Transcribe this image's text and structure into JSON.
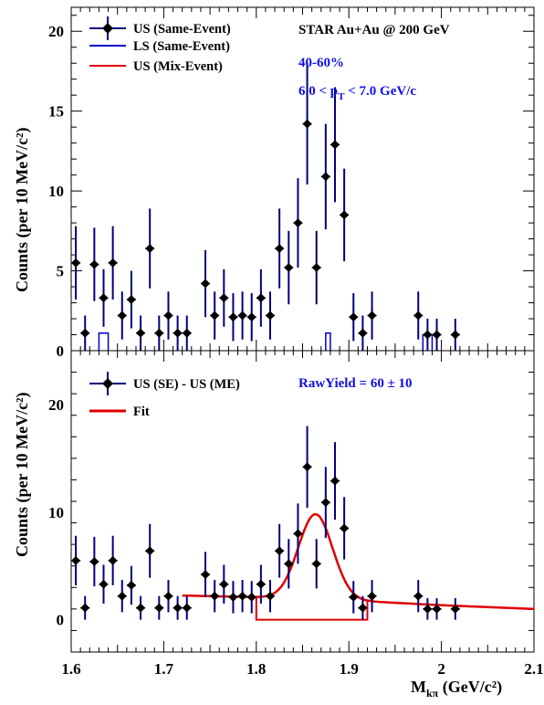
{
  "chart_data": [
    {
      "type": "scatter",
      "panel": "top",
      "ylabel": "Counts (per 10 MeV/c²)",
      "xlim": [
        1.6,
        2.1
      ],
      "ylim": [
        0,
        21.5
      ],
      "yticks": [
        0,
        5,
        10,
        15,
        20
      ],
      "annotations": {
        "system": "STAR Au+Au @ 200 GeV",
        "centrality": "40-60%",
        "pt_range": "6.0 < pT < 7.0 GeV/c"
      },
      "legend": [
        "US (Same-Event)",
        "LS (Same-Event)",
        "US (Mix-Event)"
      ],
      "series": [
        {
          "name": "US (Same-Event)",
          "color": "#000000",
          "errcolor": "#00007f",
          "x": [
            1.605,
            1.615,
            1.625,
            1.635,
            1.645,
            1.655,
            1.665,
            1.675,
            1.685,
            1.695,
            1.705,
            1.715,
            1.725,
            1.745,
            1.755,
            1.765,
            1.775,
            1.785,
            1.795,
            1.805,
            1.815,
            1.825,
            1.835,
            1.845,
            1.855,
            1.865,
            1.875,
            1.885,
            1.895,
            1.905,
            1.915,
            1.925,
            1.975,
            1.985,
            1.995,
            2.015
          ],
          "y": [
            5.5,
            1.1,
            5.4,
            3.3,
            5.5,
            2.2,
            3.2,
            1.1,
            6.4,
            1.1,
            2.2,
            1.1,
            1.1,
            4.2,
            2.2,
            3.3,
            2.1,
            2.2,
            2.1,
            3.3,
            2.2,
            6.4,
            5.2,
            8.0,
            14.2,
            5.2,
            10.9,
            12.9,
            8.5,
            2.1,
            1.1,
            2.2,
            2.2,
            1.0,
            1.0,
            1.0
          ],
          "yerr": [
            2.3,
            1.1,
            2.3,
            1.8,
            2.3,
            1.5,
            1.8,
            1.1,
            2.5,
            1.1,
            1.5,
            1.1,
            1.1,
            2.1,
            1.5,
            1.8,
            1.5,
            1.5,
            1.5,
            1.8,
            1.5,
            2.5,
            2.3,
            2.8,
            3.8,
            2.3,
            3.3,
            3.6,
            2.9,
            1.5,
            1.1,
            1.5,
            1.5,
            1.0,
            1.0,
            1.0
          ]
        },
        {
          "name": "LS (Same-Event)",
          "color": "#0000cc",
          "hist": [
            [
              1.63,
              1.64,
              1.1
            ],
            [
              1.875,
              1.88,
              1.1
            ],
            [
              1.98,
              1.99,
              1.0
            ]
          ]
        },
        {
          "name": "US (Mix-Event)",
          "color": "#e00000",
          "values": []
        }
      ]
    },
    {
      "type": "scatter",
      "panel": "bottom",
      "ylabel": "Counts (per 10 MeV/c²)",
      "xlabel": "Mkπ (GeV/c²)",
      "xlim": [
        1.6,
        2.1
      ],
      "ylim": [
        -3,
        25
      ],
      "xticks": [
        1.6,
        1.7,
        1.8,
        1.9,
        2.0,
        2.1
      ],
      "yticks": [
        0,
        10,
        20
      ],
      "annotations": {
        "raw_yield": "RawYield = 60  ± 10"
      },
      "legend": [
        "US (SE) - US (ME)",
        "Fit"
      ],
      "series": [
        {
          "name": "US (SE) - US (ME)",
          "color": "#000000",
          "errcolor": "#00007f",
          "x": [
            1.605,
            1.615,
            1.625,
            1.635,
            1.645,
            1.655,
            1.665,
            1.675,
            1.685,
            1.695,
            1.705,
            1.715,
            1.725,
            1.745,
            1.755,
            1.765,
            1.775,
            1.785,
            1.795,
            1.805,
            1.815,
            1.825,
            1.835,
            1.845,
            1.855,
            1.865,
            1.875,
            1.885,
            1.895,
            1.905,
            1.915,
            1.925,
            1.975,
            1.985,
            1.995,
            2.015
          ],
          "y": [
            5.5,
            1.1,
            5.4,
            3.3,
            5.5,
            2.2,
            3.2,
            1.1,
            6.4,
            1.1,
            2.2,
            1.1,
            1.1,
            4.2,
            2.2,
            3.3,
            2.1,
            2.2,
            2.1,
            3.3,
            2.2,
            6.4,
            5.2,
            8.0,
            14.2,
            5.2,
            10.9,
            12.9,
            8.5,
            2.1,
            1.1,
            2.2,
            2.2,
            1.0,
            1.0,
            1.0
          ],
          "yerr": [
            2.3,
            1.1,
            2.3,
            1.8,
            2.3,
            1.5,
            1.8,
            1.1,
            2.5,
            1.1,
            1.5,
            1.1,
            1.1,
            2.1,
            1.5,
            1.8,
            1.5,
            1.5,
            1.5,
            1.8,
            1.5,
            2.5,
            2.3,
            2.8,
            3.8,
            2.3,
            3.3,
            3.6,
            2.9,
            1.5,
            1.1,
            1.5,
            1.5,
            1.0,
            1.0,
            1.0
          ]
        },
        {
          "name": "Fit",
          "color": "#e00000",
          "gauss": {
            "amp": 7.9,
            "mean": 1.864,
            "sigma": 0.0185
          },
          "background": [
            [
              1.72,
              2.25
            ],
            [
              1.8,
              2.1
            ],
            [
              1.9,
              1.8
            ],
            [
              2.0,
              1.35
            ],
            [
              2.1,
              1.0
            ]
          ],
          "region": {
            "x0": 1.8,
            "x1": 1.92,
            "y": 0
          }
        }
      ]
    }
  ]
}
